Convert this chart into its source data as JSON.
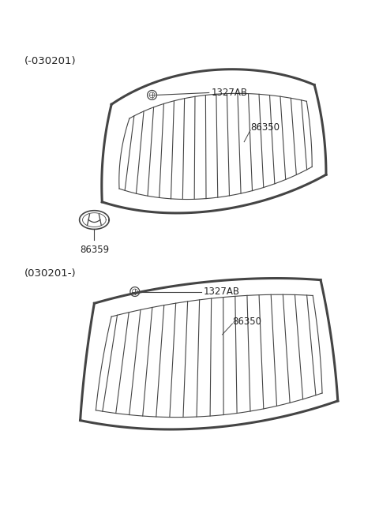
{
  "bg_color": "#ffffff",
  "line_color": "#444444",
  "label_color": "#222222",
  "section1_label": "(-030201)",
  "section2_label": "(030201-)",
  "grille1_label": "86350",
  "grille2_label": "86350",
  "bolt_label": "1327AB",
  "emblem_label": "86359",
  "num_slats_1": 17,
  "num_slats_2": 17,
  "lw_outer": 2.2,
  "lw_inner": 1.0,
  "lw_slat": 0.8
}
